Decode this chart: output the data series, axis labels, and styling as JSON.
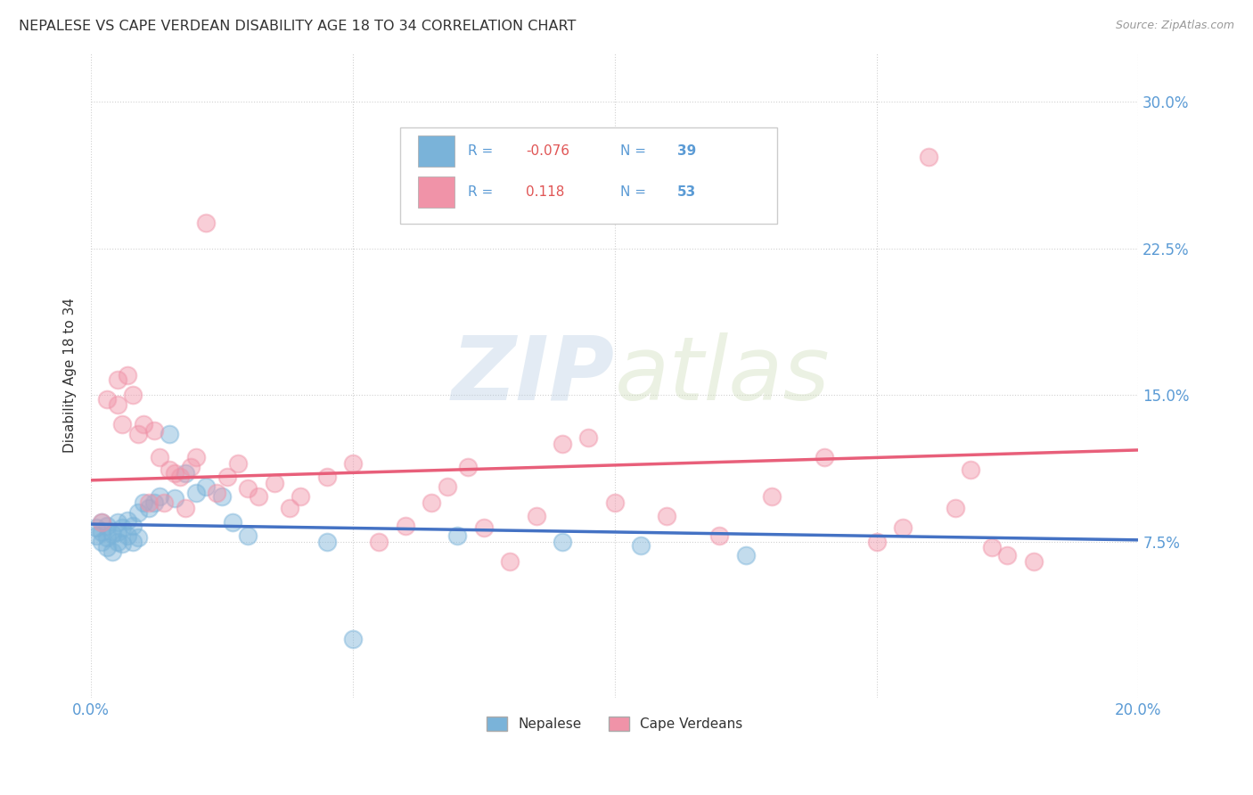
{
  "title": "NEPALESE VS CAPE VERDEAN DISABILITY AGE 18 TO 34 CORRELATION CHART",
  "source": "Source: ZipAtlas.com",
  "ylabel": "Disability Age 18 to 34",
  "xlim": [
    0.0,
    0.2
  ],
  "ylim": [
    -0.005,
    0.325
  ],
  "xticks": [
    0.0,
    0.05,
    0.1,
    0.15,
    0.2
  ],
  "xticklabels": [
    "0.0%",
    "",
    "",
    "",
    "20.0%"
  ],
  "yticks": [
    0.075,
    0.15,
    0.225,
    0.3
  ],
  "yticklabels": [
    "7.5%",
    "15.0%",
    "22.5%",
    "30.0%"
  ],
  "nepalese_color": "#7ab3d9",
  "cape_verdean_color": "#f093a8",
  "nepalese_line_color": "#4472c4",
  "cape_verdean_line_color": "#e85f7a",
  "nepalese_R": -0.076,
  "nepalese_N": 39,
  "cape_verdean_R": 0.118,
  "cape_verdean_N": 53,
  "legend_labels": [
    "Nepalese",
    "Cape Verdeans"
  ],
  "watermark_zip": "ZIP",
  "watermark_atlas": "atlas",
  "background_color": "#ffffff",
  "nepalese_points_x": [
    0.001,
    0.001,
    0.002,
    0.002,
    0.002,
    0.003,
    0.003,
    0.003,
    0.004,
    0.004,
    0.005,
    0.005,
    0.005,
    0.006,
    0.006,
    0.007,
    0.007,
    0.008,
    0.008,
    0.009,
    0.009,
    0.01,
    0.011,
    0.012,
    0.013,
    0.015,
    0.016,
    0.018,
    0.02,
    0.022,
    0.025,
    0.027,
    0.03,
    0.045,
    0.05,
    0.07,
    0.09,
    0.105,
    0.125
  ],
  "nepalese_points_y": [
    0.078,
    0.082,
    0.075,
    0.08,
    0.085,
    0.072,
    0.077,
    0.083,
    0.07,
    0.079,
    0.075,
    0.08,
    0.085,
    0.074,
    0.082,
    0.078,
    0.086,
    0.075,
    0.083,
    0.077,
    0.09,
    0.095,
    0.092,
    0.095,
    0.098,
    0.13,
    0.097,
    0.11,
    0.1,
    0.103,
    0.098,
    0.085,
    0.078,
    0.075,
    0.025,
    0.078,
    0.075,
    0.073,
    0.068
  ],
  "cape_verdean_points_x": [
    0.002,
    0.003,
    0.005,
    0.005,
    0.006,
    0.007,
    0.008,
    0.009,
    0.01,
    0.011,
    0.012,
    0.013,
    0.014,
    0.015,
    0.016,
    0.017,
    0.018,
    0.019,
    0.02,
    0.022,
    0.024,
    0.026,
    0.028,
    0.03,
    0.032,
    0.035,
    0.038,
    0.04,
    0.045,
    0.05,
    0.055,
    0.06,
    0.065,
    0.068,
    0.072,
    0.075,
    0.08,
    0.085,
    0.09,
    0.095,
    0.1,
    0.11,
    0.12,
    0.13,
    0.14,
    0.15,
    0.155,
    0.16,
    0.165,
    0.168,
    0.172,
    0.175,
    0.18
  ],
  "cape_verdean_points_y": [
    0.085,
    0.148,
    0.145,
    0.158,
    0.135,
    0.16,
    0.15,
    0.13,
    0.135,
    0.095,
    0.132,
    0.118,
    0.095,
    0.112,
    0.11,
    0.108,
    0.092,
    0.113,
    0.118,
    0.238,
    0.1,
    0.108,
    0.115,
    0.102,
    0.098,
    0.105,
    0.092,
    0.098,
    0.108,
    0.115,
    0.075,
    0.083,
    0.095,
    0.103,
    0.113,
    0.082,
    0.065,
    0.088,
    0.125,
    0.128,
    0.095,
    0.088,
    0.078,
    0.098,
    0.118,
    0.075,
    0.082,
    0.272,
    0.092,
    0.112,
    0.072,
    0.068,
    0.065
  ]
}
